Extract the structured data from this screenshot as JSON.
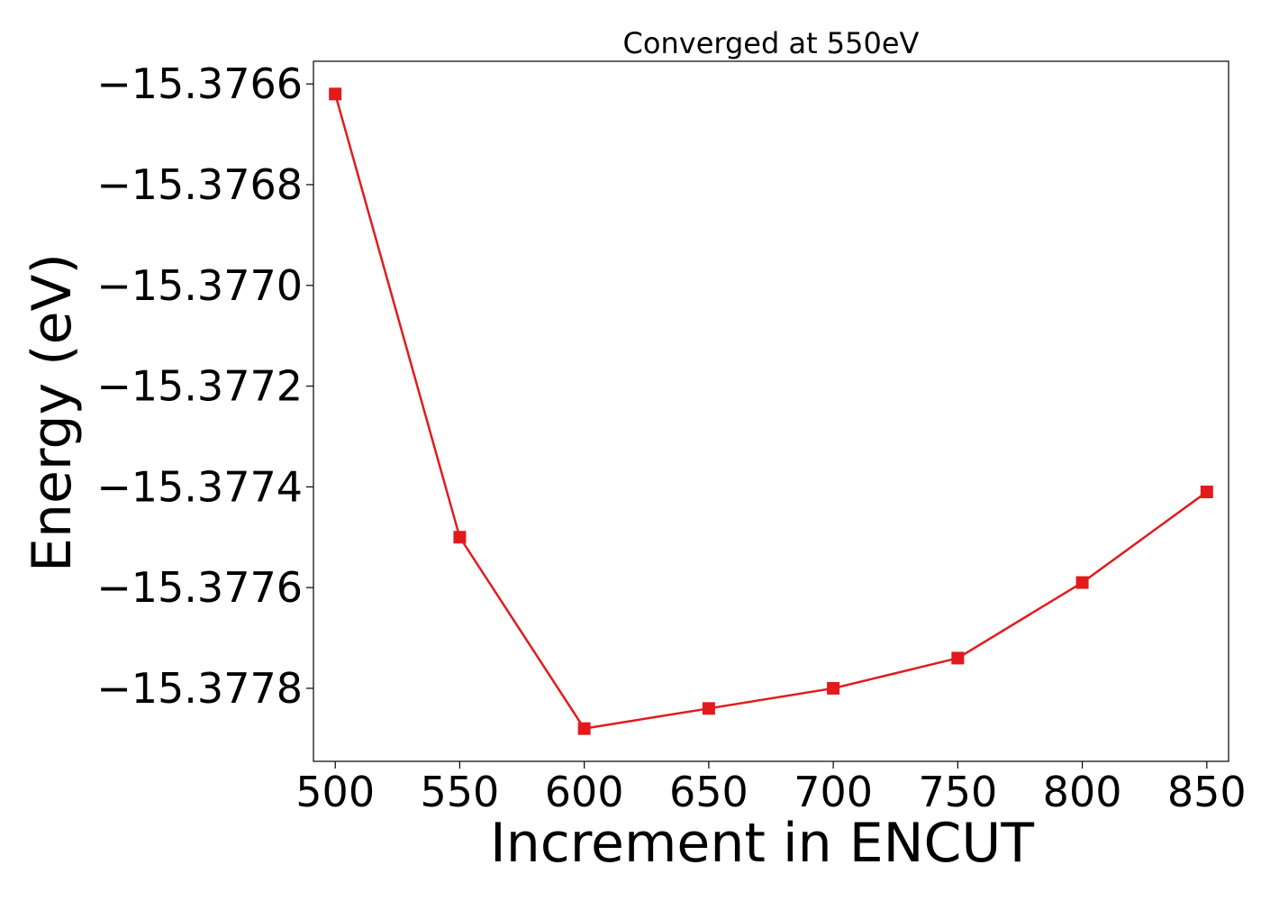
{
  "chart_data": {
    "type": "line",
    "title": "Converged at 550eV",
    "xlabel": "Increment in ENCUT",
    "ylabel": "Energy (eV)",
    "x": [
      500,
      550,
      600,
      650,
      700,
      750,
      800,
      850
    ],
    "series": [
      {
        "values": [
          -15.37662,
          -15.3775,
          -15.37788,
          -15.37784,
          -15.3778,
          -15.37774,
          -15.37759,
          -15.37741
        ],
        "color": "#e31a1c",
        "marker": "square"
      }
    ],
    "xticks": [
      "500",
      "550",
      "600",
      "650",
      "700",
      "750",
      "800",
      "850"
    ],
    "yticks": [
      "−15.3778",
      "−15.3776",
      "−15.3774",
      "−15.3772",
      "−15.3770",
      "−15.3768",
      "−15.3766"
    ],
    "xlim": [
      491.25,
      858.75
    ],
    "ylim": [
      -15.377945,
      -15.376555
    ],
    "grid": false
  }
}
